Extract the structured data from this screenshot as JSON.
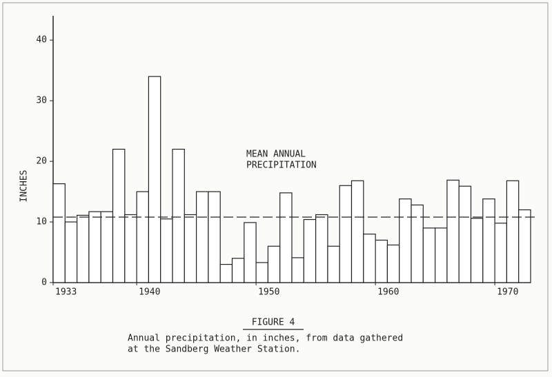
{
  "chart_data": {
    "type": "bar",
    "y_label": "INCHES",
    "annotation": [
      "MEAN ANNUAL",
      "PRECIPITATION"
    ],
    "mean_line": 10.8,
    "figure_label": "FIGURE 4",
    "caption": [
      "Annual precipitation, in inches, from data gathered",
      "at the Sandberg Weather Station."
    ],
    "x": [
      1933,
      1934,
      1935,
      1936,
      1937,
      1938,
      1939,
      1940,
      1941,
      1942,
      1943,
      1944,
      1945,
      1946,
      1947,
      1948,
      1949,
      1950,
      1951,
      1952,
      1953,
      1954,
      1955,
      1956,
      1957,
      1958,
      1959,
      1960,
      1961,
      1962,
      1963,
      1964,
      1965,
      1966,
      1967,
      1968,
      1969,
      1970,
      1971,
      1972
    ],
    "values": [
      16.3,
      10,
      11.1,
      11.7,
      11.7,
      22,
      11.2,
      15,
      34,
      10.5,
      22,
      11.2,
      15,
      15,
      3,
      4,
      9.9,
      3.3,
      6,
      14.8,
      4.1,
      10.4,
      11.2,
      6,
      16,
      16.8,
      8,
      7,
      6.2,
      13.8,
      12.8,
      9,
      9,
      16.9,
      15.9,
      10.6,
      13.8,
      9.8,
      16.8,
      12
    ],
    "color": "#ffffff",
    "xlim": [
      1933,
      1973
    ],
    "xticks": [
      1933,
      1940,
      1950,
      1960,
      1970
    ],
    "ylim": [
      0,
      44
    ],
    "yticks": [
      0,
      10,
      20,
      30,
      40
    ]
  }
}
